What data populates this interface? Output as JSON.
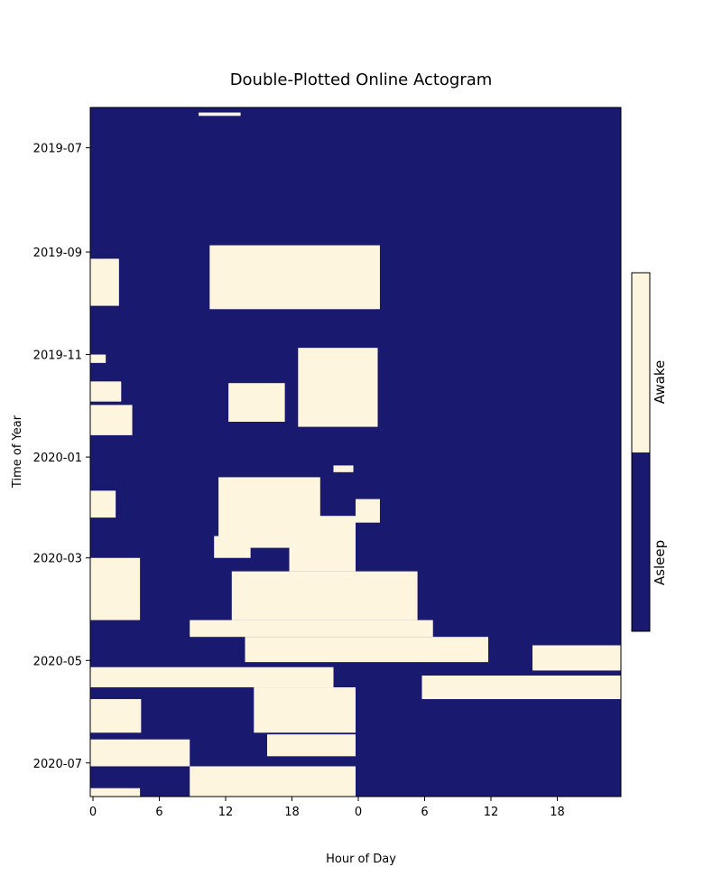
{
  "chart_data": {
    "type": "heatmap",
    "title": "Double-Plotted Online Actogram",
    "xlabel": "Hour of Day",
    "ylabel": "Time of Year",
    "x_ticks": [
      {
        "hour": 0,
        "label": "0"
      },
      {
        "hour": 6,
        "label": "6"
      },
      {
        "hour": 12,
        "label": "12"
      },
      {
        "hour": 18,
        "label": "18"
      },
      {
        "hour": 24,
        "label": "0"
      },
      {
        "hour": 30,
        "label": "6"
      },
      {
        "hour": 36,
        "label": "12"
      },
      {
        "hour": 42,
        "label": "18"
      }
    ],
    "x_range": [
      0,
      48
    ],
    "y_ticks": [
      {
        "day": 24,
        "label": "2019-07"
      },
      {
        "day": 86,
        "label": "2019-09"
      },
      {
        "day": 147,
        "label": "2019-11"
      },
      {
        "day": 208,
        "label": "2020-01"
      },
      {
        "day": 268,
        "label": "2020-03"
      },
      {
        "day": 329,
        "label": "2020-05"
      },
      {
        "day": 390,
        "label": "2020-07"
      }
    ],
    "y_range_days": [
      0,
      410
    ],
    "start_date": "2019-06-07",
    "colorbar": {
      "categories": [
        "Asleep",
        "Awake"
      ],
      "colors": {
        "Asleep": "#191970",
        "Awake": "#fdf5de"
      }
    },
    "awake_bouts": [
      {
        "day_start": 3,
        "day_end": 5,
        "hour_start": 9.8,
        "hour_end": 13.6
      },
      {
        "day_start": 82,
        "day_end": 120,
        "hour_start": 10.8,
        "hour_end": 26.2
      },
      {
        "day_start": 90,
        "day_end": 118,
        "hour_start": 0.0,
        "hour_end": 2.6
      },
      {
        "day_start": 143,
        "day_end": 190,
        "hour_start": 18.8,
        "hour_end": 26.0
      },
      {
        "day_start": 147,
        "day_end": 152,
        "hour_start": 0.0,
        "hour_end": 1.4
      },
      {
        "day_start": 163,
        "day_end": 175,
        "hour_start": 0.0,
        "hour_end": 2.8
      },
      {
        "day_start": 177,
        "day_end": 195,
        "hour_start": 0.0,
        "hour_end": 3.8
      },
      {
        "day_start": 164,
        "day_end": 187,
        "hour_start": 12.5,
        "hour_end": 17.6
      },
      {
        "day_start": 213,
        "day_end": 217,
        "hour_start": 22.0,
        "hour_end": 23.8
      },
      {
        "day_start": 220,
        "day_end": 262,
        "hour_start": 11.6,
        "hour_end": 20.8
      },
      {
        "day_start": 228,
        "day_end": 244,
        "hour_start": 0.0,
        "hour_end": 2.3
      },
      {
        "day_start": 233,
        "day_end": 247,
        "hour_start": 24.0,
        "hour_end": 26.2
      },
      {
        "day_start": 243,
        "day_end": 276,
        "hour_start": 18.0,
        "hour_end": 24.0
      },
      {
        "day_start": 255,
        "day_end": 268,
        "hour_start": 11.2,
        "hour_end": 14.5
      },
      {
        "day_start": 268,
        "day_end": 305,
        "hour_start": 0.0,
        "hour_end": 4.5
      },
      {
        "day_start": 276,
        "day_end": 305,
        "hour_start": 12.8,
        "hour_end": 29.6
      },
      {
        "day_start": 305,
        "day_end": 315,
        "hour_start": 9.0,
        "hour_end": 31.0
      },
      {
        "day_start": 315,
        "day_end": 330,
        "hour_start": 14.0,
        "hour_end": 36.0
      },
      {
        "day_start": 320,
        "day_end": 335,
        "hour_start": 40.0,
        "hour_end": 48.0
      },
      {
        "day_start": 333,
        "day_end": 345,
        "hour_start": 0.0,
        "hour_end": 22.0
      },
      {
        "day_start": 338,
        "day_end": 352,
        "hour_start": 30.0,
        "hour_end": 48.0
      },
      {
        "day_start": 345,
        "day_end": 372,
        "hour_start": 14.8,
        "hour_end": 24.0
      },
      {
        "day_start": 352,
        "day_end": 372,
        "hour_start": 0.0,
        "hour_end": 4.6
      },
      {
        "day_start": 376,
        "day_end": 392,
        "hour_start": 0.0,
        "hour_end": 9.0
      },
      {
        "day_start": 373,
        "day_end": 386,
        "hour_start": 16.0,
        "hour_end": 24.0
      },
      {
        "day_start": 392,
        "day_end": 410,
        "hour_start": 9.0,
        "hour_end": 24.0
      },
      {
        "day_start": 405,
        "day_end": 410,
        "hour_start": 0.0,
        "hour_end": 4.5
      }
    ]
  }
}
